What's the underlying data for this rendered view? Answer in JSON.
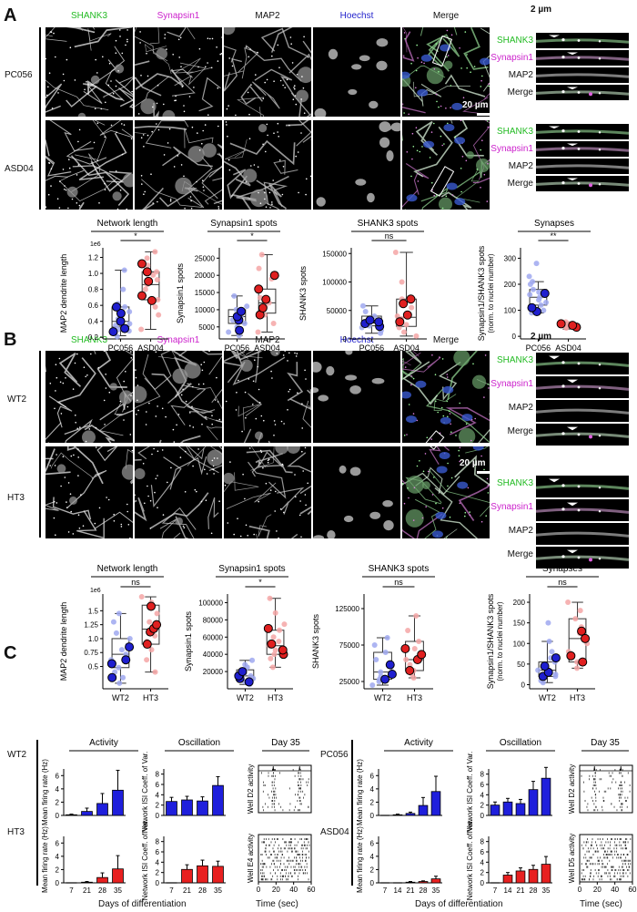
{
  "panels": [
    "A",
    "B",
    "C"
  ],
  "A": {
    "headers": [
      {
        "t": "SHANK3",
        "c": "#22bb22"
      },
      {
        "t": "Synapsin1",
        "c": "#cc22cc"
      },
      {
        "t": "MAP2",
        "c": "#111111"
      },
      {
        "t": "Hoechst",
        "c": "#2222cc"
      },
      {
        "t": "Merge",
        "c": "#111111"
      }
    ],
    "rows": [
      "PC056",
      "ASD04"
    ],
    "scale_main": "20 µm",
    "scale_inset": "2 µm",
    "inset_labels": [
      {
        "t": "SHANK3",
        "c": "#22bb22"
      },
      {
        "t": "Synapsin1",
        "c": "#cc22cc"
      },
      {
        "t": "MAP2",
        "c": "#111111"
      },
      {
        "t": "Merge",
        "c": "#111111"
      }
    ]
  },
  "B": {
    "headers": [
      {
        "t": "SHANK3",
        "c": "#22bb22"
      },
      {
        "t": "Synapsin1",
        "c": "#cc22cc"
      },
      {
        "t": "MAP2",
        "c": "#111111"
      },
      {
        "t": "Hoechst",
        "c": "#2222cc"
      },
      {
        "t": "Merge",
        "c": "#111111"
      }
    ],
    "rows": [
      "WT2",
      "HT3"
    ],
    "scale_main": "20 µm",
    "scale_inset": "2 µm",
    "inset_labels": [
      {
        "t": "SHANK3",
        "c": "#22bb22"
      },
      {
        "t": "Synapsin1",
        "c": "#cc22cc"
      },
      {
        "t": "MAP2",
        "c": "#111111"
      },
      {
        "t": "Merge",
        "c": "#111111"
      }
    ]
  },
  "chart_data": [
    {
      "type": "box",
      "title": "Network length",
      "ylabel": "MAP2 dendrite length",
      "multiplier": "1e6",
      "categories": [
        "PC056",
        "ASD04"
      ],
      "ylim": [
        0.18,
        1.32
      ],
      "yticks": [
        0.2,
        0.4,
        0.6,
        0.8,
        1.0,
        1.2
      ],
      "ytick_labels": [
        "0.2",
        "0.4",
        "0.6",
        "0.8",
        "1.0",
        "1.2"
      ],
      "sig": "*",
      "boxes": [
        {
          "q1": 0.33,
          "med": 0.4,
          "q3": 0.58,
          "min": 0.22,
          "max": 1.04
        },
        {
          "q1": 0.67,
          "med": 0.86,
          "q3": 1.02,
          "min": 0.3,
          "max": 1.27
        }
      ],
      "points": [
        [
          0.21,
          0.25,
          0.28,
          0.3,
          0.33,
          0.35,
          0.37,
          0.4,
          0.43,
          0.47,
          0.52,
          0.58,
          0.62,
          0.8,
          1.04
        ],
        [
          0.3,
          0.48,
          0.58,
          0.67,
          0.72,
          0.8,
          0.86,
          0.92,
          0.98,
          1.02,
          1.1,
          1.19,
          1.27
        ]
      ],
      "big": [
        [
          0.27,
          0.31,
          0.4,
          0.5,
          0.58
        ],
        [
          0.66,
          0.72,
          0.9,
          1.02,
          1.12
        ]
      ]
    },
    {
      "type": "box",
      "title": "Synapsin1 spots",
      "ylabel": "Synapsin1 spots",
      "categories": [
        "PC056",
        "ASD04"
      ],
      "ylim": [
        1500,
        28000
      ],
      "yticks": [
        5000,
        10000,
        15000,
        20000,
        25000
      ],
      "ytick_labels": [
        "5000",
        "10000",
        "15000",
        "20000",
        "25000"
      ],
      "sig": "*",
      "boxes": [
        {
          "q1": 6000,
          "med": 8000,
          "q3": 10000,
          "min": 2500,
          "max": 14000
        },
        {
          "q1": 9000,
          "med": 12000,
          "q3": 16000,
          "min": 3500,
          "max": 26000
        }
      ],
      "points": [
        [
          2500,
          3500,
          5000,
          6000,
          7000,
          8000,
          9000,
          10000,
          11000,
          14000
        ],
        [
          3500,
          6000,
          8500,
          11000,
          12000,
          13500,
          16000,
          19000,
          22000,
          26000
        ]
      ],
      "big": [
        [
          4000,
          7000,
          8000,
          9500
        ],
        [
          8500,
          10500,
          13000,
          16000,
          20000
        ]
      ]
    },
    {
      "type": "box",
      "title": "SHANK3 spots",
      "ylabel": "SHANK3 spots",
      "categories": [
        "PC056",
        "ASD04"
      ],
      "ylim": [
        0,
        160000
      ],
      "yticks": [
        0,
        50000,
        100000,
        150000
      ],
      "ytick_labels": [
        "0",
        "50000",
        "100000",
        "150000"
      ],
      "sig": "ns",
      "boxes": [
        {
          "q1": 23000,
          "med": 28000,
          "q3": 40000,
          "min": 10000,
          "max": 58000
        },
        {
          "q1": 22000,
          "med": 38000,
          "q3": 70000,
          "min": 5000,
          "max": 152000
        }
      ],
      "points": [
        [
          10000,
          15000,
          20000,
          23000,
          25000,
          28000,
          30000,
          35000,
          40000,
          48000,
          58000
        ],
        [
          5000,
          12000,
          20000,
          25000,
          35000,
          40000,
          55000,
          70000,
          100000,
          152000
        ]
      ],
      "big": [
        [
          22000,
          27000,
          30000,
          33000
        ],
        [
          30000,
          42000,
          62000,
          70000
        ]
      ]
    },
    {
      "type": "box",
      "title": "Synapses",
      "ylabel": "Synapsin1/SHANK3 spots",
      "ylabel2": "(norm. to nuclei number)",
      "categories": [
        "PC056",
        "ASD04"
      ],
      "ylim": [
        -10,
        340
      ],
      "yticks": [
        0,
        100,
        200,
        300
      ],
      "ytick_labels": [
        "0",
        "100",
        "200",
        "300"
      ],
      "sig": "**",
      "boxes": [
        {
          "q1": 120,
          "med": 150,
          "q3": 180,
          "min": 90,
          "max": 210
        },
        {
          "q1": 35,
          "med": 42,
          "q3": 48,
          "min": 28,
          "max": 55
        }
      ],
      "points": [
        [
          90,
          100,
          120,
          130,
          140,
          150,
          160,
          170,
          180,
          200,
          210,
          230,
          280
        ],
        [
          28,
          32,
          38,
          42,
          45,
          48,
          55
        ]
      ],
      "big": [
        [
          95,
          110,
          165
        ],
        [
          35,
          42,
          48
        ]
      ]
    },
    {
      "type": "box",
      "title": "Network length",
      "ylabel": "MAP2 dendrite length",
      "multiplier": "1e6",
      "categories": [
        "WT2",
        "HT3"
      ],
      "ylim": [
        0.1,
        1.8
      ],
      "yticks": [
        0.5,
        0.75,
        1.0,
        1.25,
        1.5
      ],
      "ytick_labels": [
        "0.5",
        "0.75",
        "1.0",
        "1.25",
        "1.5"
      ],
      "sig": "ns",
      "boxes": [
        {
          "q1": 0.48,
          "med": 0.72,
          "q3": 1.0,
          "min": 0.2,
          "max": 1.45
        },
        {
          "q1": 0.9,
          "med": 1.17,
          "q3": 1.6,
          "min": 0.4,
          "max": 1.75
        }
      ],
      "points": [
        [
          0.2,
          0.3,
          0.4,
          0.48,
          0.55,
          0.62,
          0.72,
          0.8,
          0.88,
          1.0,
          1.1,
          1.3,
          1.45
        ],
        [
          0.4,
          0.62,
          0.8,
          0.95,
          1.05,
          1.17,
          1.3,
          1.45,
          1.58,
          1.65,
          1.75
        ]
      ],
      "big": [
        [
          0.3,
          0.55,
          0.62,
          0.85
        ],
        [
          0.9,
          1.12,
          1.18,
          1.25,
          1.58
        ]
      ]
    },
    {
      "type": "box",
      "title": "Synapsin1 spots",
      "ylabel": "Synapsin1 spots",
      "categories": [
        "WT2",
        "HT3"
      ],
      "ylim": [
        0,
        110000
      ],
      "yticks": [
        20000,
        40000,
        60000,
        80000,
        100000
      ],
      "ytick_labels": [
        "20000",
        "40000",
        "60000",
        "80000",
        "100000"
      ],
      "sig": "*",
      "boxes": [
        {
          "q1": 10000,
          "med": 15000,
          "q3": 22000,
          "min": 5000,
          "max": 33000
        },
        {
          "q1": 40000,
          "med": 50000,
          "q3": 68000,
          "min": 25000,
          "max": 105000
        }
      ],
      "points": [
        [
          5000,
          8000,
          10000,
          12000,
          15000,
          18000,
          22000,
          25000,
          28000,
          33000
        ],
        [
          25000,
          35000,
          40000,
          45000,
          50000,
          55000,
          60000,
          68000,
          75000,
          88000,
          105000
        ]
      ],
      "big": [
        [
          8000,
          12000,
          15000,
          20000
        ],
        [
          40000,
          45000,
          52000,
          70000
        ]
      ]
    },
    {
      "type": "box",
      "title": "SHANK3 spots",
      "ylabel": "SHANK3 spots",
      "categories": [
        "WT2",
        "HT3"
      ],
      "ylim": [
        15000,
        145000
      ],
      "yticks": [
        25000,
        75000,
        125000
      ],
      "ytick_labels": [
        "25000",
        "75000",
        "125000"
      ],
      "sig": "ns",
      "boxes": [
        {
          "q1": 28000,
          "med": 38000,
          "q3": 65000,
          "min": 20000,
          "max": 85000
        },
        {
          "q1": 40000,
          "med": 55000,
          "q3": 80000,
          "min": 30000,
          "max": 115000
        }
      ],
      "points": [
        [
          20000,
          25000,
          28000,
          32000,
          38000,
          45000,
          55000,
          65000,
          75000,
          85000
        ],
        [
          30000,
          35000,
          40000,
          48000,
          55000,
          62000,
          70000,
          80000,
          95000,
          115000
        ]
      ],
      "big": [
        [
          28000,
          35000,
          48000
        ],
        [
          40000,
          55000,
          62000,
          70000
        ]
      ]
    },
    {
      "type": "box",
      "title": "Synapses",
      "ylabel": "Synapsin1/SHANK3 spots",
      "ylabel2": "(norm. to nuclei number)",
      "categories": [
        "WT2",
        "HT3"
      ],
      "ylim": [
        -10,
        220
      ],
      "yticks": [
        0,
        50,
        100,
        150,
        200
      ],
      "ytick_labels": [
        "0",
        "50",
        "100",
        "150",
        "200"
      ],
      "sig": "ns",
      "boxes": [
        {
          "q1": 20,
          "med": 35,
          "q3": 55,
          "min": 5,
          "max": 105
        },
        {
          "q1": 55,
          "med": 112,
          "q3": 160,
          "min": 40,
          "max": 200
        }
      ],
      "points": [
        [
          5,
          10,
          20,
          25,
          35,
          45,
          55,
          65,
          80,
          105,
          150
        ],
        [
          40,
          55,
          80,
          100,
          112,
          125,
          140,
          160,
          180,
          200
        ]
      ],
      "big": [
        [
          20,
          30,
          45,
          65
        ],
        [
          55,
          70,
          112,
          130
        ]
      ]
    },
    {
      "type": "bar",
      "title": "Activity",
      "ylabel": "Mean firing rate (Hz)",
      "categories": [
        "7",
        "21",
        "28",
        "35"
      ],
      "values": [
        0.1,
        0.6,
        1.8,
        3.8
      ],
      "errors": [
        0.1,
        0.5,
        1.5,
        3.0
      ],
      "ylim": [
        0,
        7
      ],
      "yticks": [
        0,
        2,
        4,
        6
      ],
      "color": "#1f1fdc"
    },
    {
      "type": "bar",
      "title": "Oscillation",
      "ylabel": "Network ISI Coeff. of Var.",
      "categories": [
        "7",
        "21",
        "28",
        "35"
      ],
      "values": [
        2.7,
        3.0,
        2.8,
        5.8
      ],
      "errors": [
        0.8,
        0.7,
        0.8,
        1.7
      ],
      "ylim": [
        0,
        9
      ],
      "yticks": [
        0,
        2,
        4,
        6,
        8
      ],
      "color": "#1f1fdc"
    },
    {
      "type": "raster",
      "title": "Day 35",
      "ylabel": "Well D2 activity",
      "xticks": [
        0,
        20,
        40,
        60
      ]
    },
    {
      "type": "bar",
      "ylabel": "Mean firing rate (Hz)",
      "categories": [
        "7",
        "21",
        "28",
        "35"
      ],
      "values": [
        0.0,
        0.1,
        0.8,
        2.1
      ],
      "errors": [
        0.0,
        0.1,
        0.7,
        2.0
      ],
      "ylim": [
        0,
        7
      ],
      "yticks": [
        0,
        2,
        4,
        6
      ],
      "color": "#e82020"
    },
    {
      "type": "bar",
      "ylabel": "Network ISI Coeff. of Var.",
      "categories": [
        "7",
        "21",
        "28",
        "35"
      ],
      "values": [
        0.0,
        2.6,
        3.3,
        3.2
      ],
      "errors": [
        0.0,
        0.9,
        1.1,
        1.0
      ],
      "ylim": [
        0,
        9
      ],
      "yticks": [
        0,
        2,
        4,
        6,
        8
      ],
      "color": "#e82020"
    },
    {
      "type": "raster",
      "ylabel": "Well E4 activity",
      "xticks": [
        0,
        20,
        40,
        60
      ]
    },
    {
      "type": "bar",
      "title": "Activity",
      "ylabel": "Mean firing rate (Hz)",
      "categories": [
        "7",
        "14",
        "21",
        "28",
        "35"
      ],
      "values": [
        0.0,
        0.1,
        0.3,
        1.5,
        3.6
      ],
      "errors": [
        0.0,
        0.1,
        0.2,
        1.2,
        2.3
      ],
      "ylim": [
        0,
        7
      ],
      "yticks": [
        0,
        2,
        4,
        6
      ],
      "color": "#1f1fdc"
    },
    {
      "type": "bar",
      "title": "Oscillation",
      "ylabel": "Network ISI Coeff. of Var.",
      "categories": [
        "7",
        "14",
        "21",
        "28",
        "35"
      ],
      "values": [
        2.0,
        2.6,
        2.3,
        5.0,
        7.2
      ],
      "errors": [
        0.6,
        0.7,
        0.8,
        1.6,
        2.1
      ],
      "ylim": [
        0,
        9
      ],
      "yticks": [
        0,
        2,
        4,
        6,
        8
      ],
      "color": "#1f1fdc"
    },
    {
      "type": "raster",
      "title": "Day 35",
      "ylabel": "Well D2 activity",
      "xticks": [
        0,
        20,
        40,
        60
      ]
    },
    {
      "type": "bar",
      "ylabel": "Mean firing rate (Hz)",
      "categories": [
        "7",
        "14",
        "21",
        "28",
        "35"
      ],
      "values": [
        0.0,
        0.0,
        0.1,
        0.2,
        0.6
      ],
      "errors": [
        0.0,
        0.0,
        0.1,
        0.1,
        0.4
      ],
      "ylim": [
        0,
        7
      ],
      "yticks": [
        0,
        2,
        4,
        6
      ],
      "color": "#e82020"
    },
    {
      "type": "bar",
      "ylabel": "Network ISI Coeff. of Var.",
      "categories": [
        "7",
        "14",
        "21",
        "28",
        "35"
      ],
      "values": [
        0.0,
        1.5,
        2.3,
        2.6,
        3.6
      ],
      "errors": [
        0.0,
        0.5,
        0.6,
        0.8,
        1.5
      ],
      "ylim": [
        0,
        9
      ],
      "yticks": [
        0,
        2,
        4,
        6,
        8
      ],
      "color": "#e82020"
    },
    {
      "type": "raster",
      "ylabel": "Well D5 activity",
      "xticks": [
        0,
        20,
        40,
        60
      ]
    }
  ],
  "C": {
    "rows_left": [
      "WT2",
      "HT3"
    ],
    "rows_right": [
      "PC056",
      "ASD04"
    ],
    "xlabel_left": "Days of differentiation",
    "xlabel_right": "Days of differentiation",
    "raster_xlabel": "Time (sec)"
  }
}
